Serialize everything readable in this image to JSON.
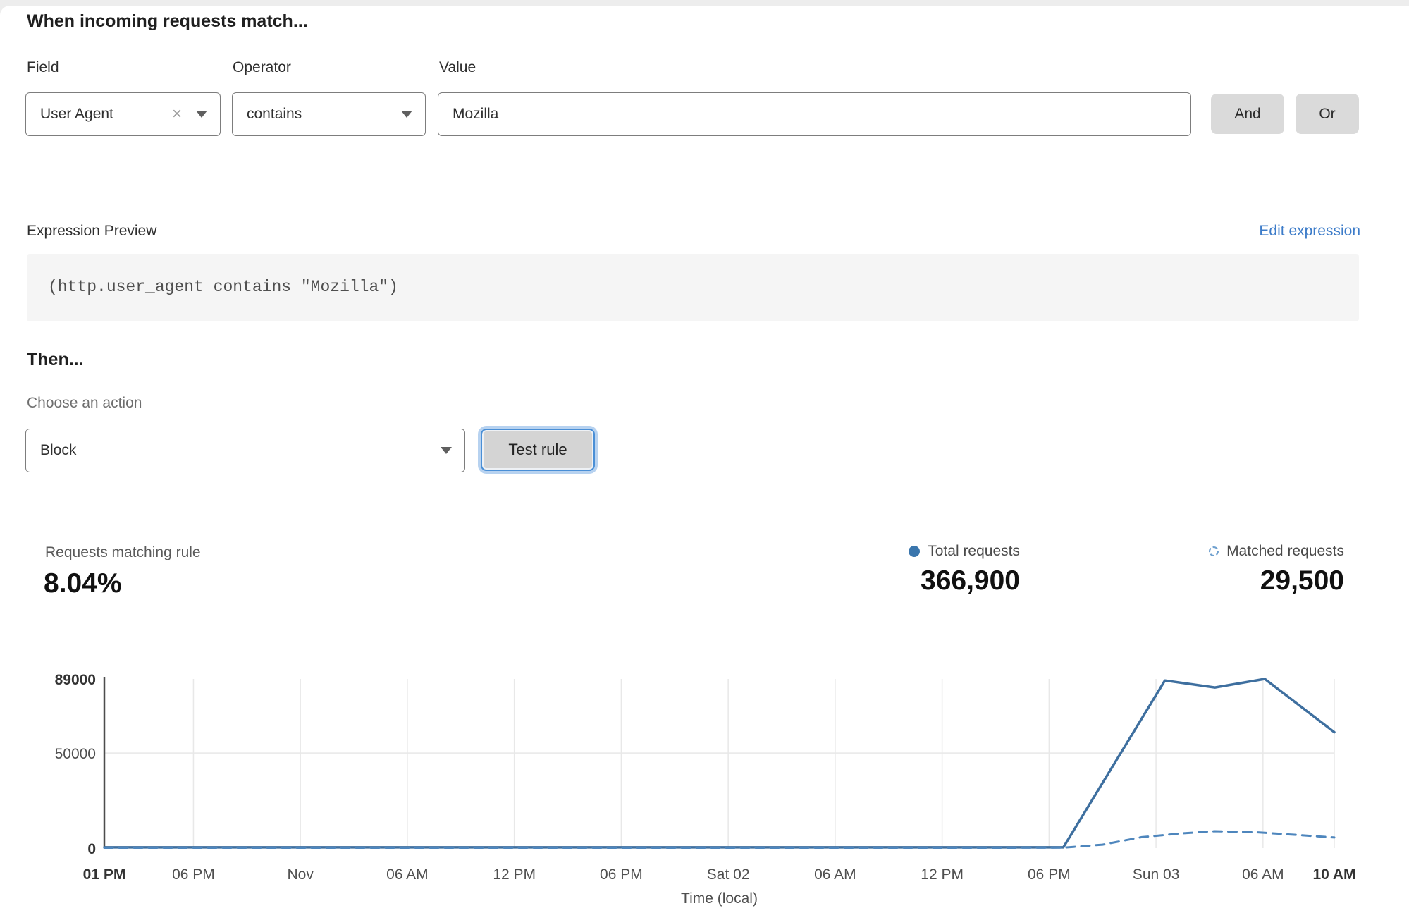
{
  "rule_builder": {
    "title": "When incoming requests match...",
    "field": {
      "label": "Field",
      "value": "User Agent",
      "clear_glyph": "×"
    },
    "operator": {
      "label": "Operator",
      "value": "contains"
    },
    "value": {
      "label": "Value",
      "value": "Mozilla"
    },
    "and_label": "And",
    "or_label": "Or"
  },
  "expression": {
    "label": "Expression Preview",
    "edit_link": "Edit expression",
    "code": "(http.user_agent contains \"Mozilla\")"
  },
  "action": {
    "title": "Then...",
    "label": "Choose an action",
    "value": "Block",
    "test_button": "Test rule"
  },
  "stats": {
    "match_label": "Requests matching rule",
    "match_value": "8.04%",
    "total_value": "366,900",
    "matched_value": "29,500"
  },
  "colors": {
    "line_solid": "#3e6f9f",
    "line_dashed": "#4e86bd",
    "legend_dot": "#3a76ad",
    "legend_dashed": "#6fa0cf",
    "link_blue": "#3d7cc9",
    "focus_ring_blue": "#4a8fd6",
    "grid": "#e8e8e8"
  },
  "chart_data": {
    "type": "line",
    "title": "",
    "xlabel": "Time (local)",
    "ylabel": "",
    "x_unit": "hours after Fri 01 PM",
    "xlim": [
      0,
      69
    ],
    "ylim": [
      0,
      89000
    ],
    "grid": "vertical-at-ticks plus horizontal at 50000",
    "legend_position": "above-chart-right",
    "yticks": [
      {
        "v": 0,
        "label": "0",
        "bold": true
      },
      {
        "v": 50000,
        "label": "50000",
        "bold": false
      },
      {
        "v": 89000,
        "label": "89000",
        "bold": true
      }
    ],
    "xticks": [
      {
        "h": 0,
        "label": "01 PM",
        "bold": true
      },
      {
        "h": 5,
        "label": "06 PM",
        "bold": false
      },
      {
        "h": 11,
        "label": "Nov",
        "bold": false
      },
      {
        "h": 17,
        "label": "06 AM",
        "bold": false
      },
      {
        "h": 23,
        "label": "12 PM",
        "bold": false
      },
      {
        "h": 29,
        "label": "06 PM",
        "bold": false
      },
      {
        "h": 35,
        "label": "Sat 02",
        "bold": false
      },
      {
        "h": 41,
        "label": "06 AM",
        "bold": false
      },
      {
        "h": 47,
        "label": "12 PM",
        "bold": false
      },
      {
        "h": 53,
        "label": "06 PM",
        "bold": false
      },
      {
        "h": 59,
        "label": "Sun 03",
        "bold": false
      },
      {
        "h": 65,
        "label": "06 AM",
        "bold": false
      },
      {
        "h": 69,
        "label": "10 AM",
        "bold": true
      }
    ],
    "series": [
      {
        "name": "Total requests",
        "style": "solid",
        "color": "#3e6f9f",
        "points": [
          [
            0,
            400
          ],
          [
            5,
            400
          ],
          [
            11,
            400
          ],
          [
            17,
            400
          ],
          [
            23,
            400
          ],
          [
            29,
            400
          ],
          [
            35,
            400
          ],
          [
            41,
            400
          ],
          [
            47,
            400
          ],
          [
            53.8,
            400
          ],
          [
            59.5,
            88200
          ],
          [
            62.3,
            84500
          ],
          [
            65.1,
            89000
          ],
          [
            69,
            61000
          ]
        ]
      },
      {
        "name": "Matched requests",
        "style": "dashed",
        "color": "#4e86bd",
        "points": [
          [
            0,
            200
          ],
          [
            10,
            200
          ],
          [
            20,
            200
          ],
          [
            30,
            200
          ],
          [
            40,
            200
          ],
          [
            50,
            200
          ],
          [
            53.8,
            250
          ],
          [
            56,
            1800
          ],
          [
            58.2,
            5800
          ],
          [
            60.5,
            7800
          ],
          [
            62.3,
            8900
          ],
          [
            64.5,
            8400
          ],
          [
            66.5,
            7200
          ],
          [
            69,
            5600
          ]
        ]
      }
    ]
  }
}
